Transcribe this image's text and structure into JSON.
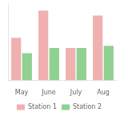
{
  "chart_data": {
    "type": "bar",
    "categories": [
      "May",
      "June",
      "July",
      "Aug"
    ],
    "series": [
      {
        "name": "Station 1",
        "color": "#f0b0b0",
        "values": [
          0.58,
          0.95,
          0.44,
          0.88
        ]
      },
      {
        "name": "Station 2",
        "color": "#90d090",
        "values": [
          0.37,
          0.44,
          0.44,
          0.47
        ]
      }
    ],
    "ylim": [
      0,
      1.05
    ],
    "yticks": [],
    "tick_labels": "x",
    "grid": false,
    "legend": "bottom"
  }
}
